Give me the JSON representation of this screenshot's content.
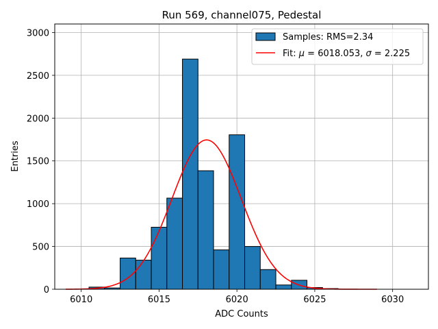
{
  "chart_data": {
    "type": "bar",
    "title": "Run 569, channel075, Pedestal",
    "xlabel": "ADC Counts",
    "ylabel": "Entries",
    "xlim": [
      6008.3,
      6032.3
    ],
    "ylim": [
      0,
      3100
    ],
    "xticks": [
      6010,
      6015,
      6020,
      6025,
      6030
    ],
    "yticks": [
      0,
      500,
      1000,
      1500,
      2000,
      2500,
      3000
    ],
    "grid": true,
    "legend_position": "top-right",
    "histogram": {
      "name": "Samples: RMS=2.34",
      "color": "#1f77b4",
      "edge_color": "#000000",
      "bin_width": 1,
      "bins": [
        {
          "x": 6011,
          "count": 25
        },
        {
          "x": 6012,
          "count": 15
        },
        {
          "x": 6013,
          "count": 365
        },
        {
          "x": 6014,
          "count": 340
        },
        {
          "x": 6015,
          "count": 725
        },
        {
          "x": 6016,
          "count": 1065
        },
        {
          "x": 6017,
          "count": 2690
        },
        {
          "x": 6018,
          "count": 1385
        },
        {
          "x": 6019,
          "count": 460
        },
        {
          "x": 6020,
          "count": 1805
        },
        {
          "x": 6021,
          "count": 500
        },
        {
          "x": 6022,
          "count": 230
        },
        {
          "x": 6023,
          "count": 50
        },
        {
          "x": 6024,
          "count": 105
        },
        {
          "x": 6025,
          "count": 20
        },
        {
          "x": 6026,
          "count": 8
        }
      ]
    },
    "fit": {
      "name": "Fit: μ = 6018.053, σ = 2.225",
      "name_prefix": "Fit: ",
      "mu_symbol": "μ",
      "mu_text": " = 6018.053, ",
      "sigma_symbol": "σ",
      "sigma_text": " = 2.225",
      "color": "#ff0000",
      "mu": 6018.053,
      "sigma": 2.225,
      "amplitude": 1745,
      "x_range": [
        6009,
        6029
      ]
    }
  }
}
